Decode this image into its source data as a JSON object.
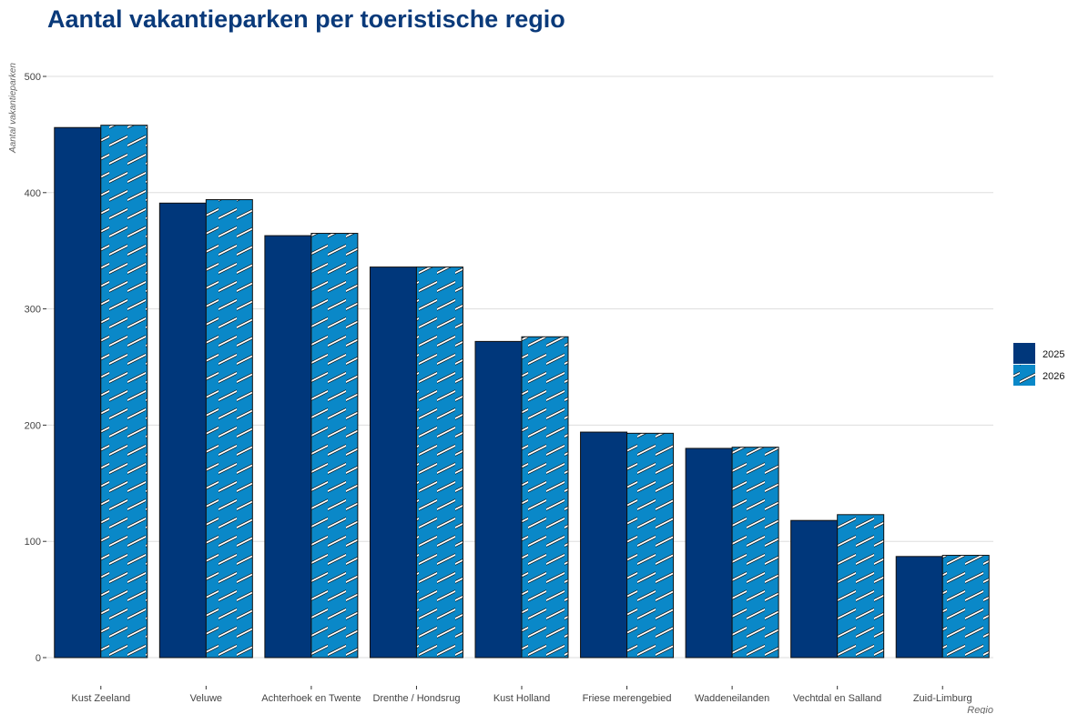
{
  "colors": {
    "series_2025": "#00377b",
    "series_2026": "#0a88c8",
    "title": "#0a3a7a",
    "grid": "#dddddd",
    "hatch": "#ffffff",
    "outline": "#111111"
  },
  "chart_data": {
    "type": "bar",
    "title": "Aantal vakantieparken per toeristische regio",
    "xlabel": "Regio",
    "ylabel": "Aantal vakantieparken",
    "ylim": [
      0,
      500
    ],
    "yticks": [
      0,
      100,
      200,
      300,
      400,
      500
    ],
    "grid": true,
    "legend_position": "right",
    "categories": [
      "Kust Zeeland",
      "Veluwe",
      "Achterhoek en Twente",
      "Drenthe / Hondsrug",
      "Kust Holland",
      "Friese merengebied",
      "Waddeneilanden",
      "Vechtdal en Salland",
      "Zuid-Limburg"
    ],
    "series": [
      {
        "name": "2025",
        "values": [
          456,
          391,
          363,
          336,
          272,
          194,
          180,
          118,
          87
        ]
      },
      {
        "name": "2026",
        "values": [
          458,
          394,
          365,
          336,
          276,
          193,
          181,
          123,
          88
        ]
      }
    ]
  }
}
